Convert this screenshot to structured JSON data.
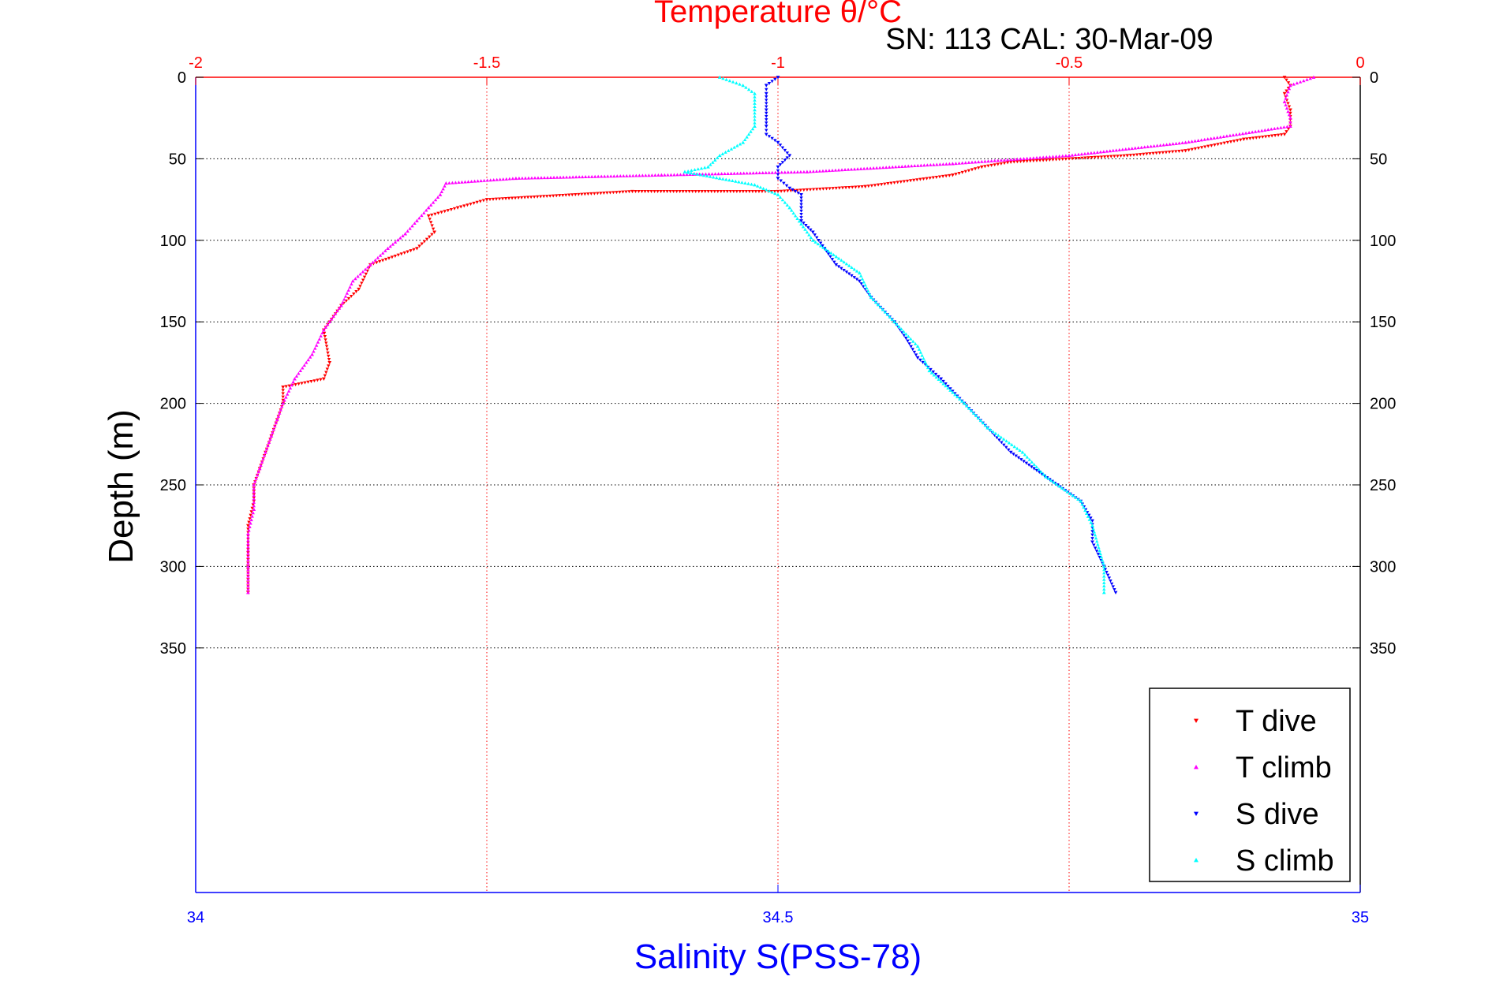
{
  "chart_data": {
    "type": "scatter",
    "title": "Temperature θ/°C",
    "subtitle": "SN: 113  CAL: 30-Mar-09",
    "xlabel": "Salinity S(PSS-78)",
    "ylabel": "Depth (m)",
    "temperature_axis": {
      "range": [
        -2,
        0
      ],
      "ticks": [
        -2,
        -1.5,
        -1,
        -0.5,
        0
      ],
      "tick_labels": [
        "-2",
        "-1.5",
        "-1",
        "-0.5",
        "0"
      ]
    },
    "salinity_axis": {
      "range": [
        34,
        35
      ],
      "ticks": [
        34,
        34.5,
        35
      ],
      "tick_labels": [
        "34",
        "34.5",
        "35"
      ]
    },
    "depth_axis": {
      "range": [
        0,
        500
      ],
      "reversed": true,
      "ticks": [
        0,
        50,
        100,
        150,
        200,
        250,
        300,
        350
      ],
      "tick_labels": [
        "0",
        "50",
        "100",
        "150",
        "200",
        "250",
        "300",
        "350"
      ]
    },
    "grid": true,
    "legend_position": "bottom-right",
    "series": [
      {
        "name": "T dive",
        "axis": "temperature",
        "color": "#ff0000",
        "marker": "triangle-down",
        "points": [
          [
            -0.13,
            0
          ],
          [
            -0.12,
            5
          ],
          [
            -0.13,
            10
          ],
          [
            -0.12,
            20
          ],
          [
            -0.12,
            30
          ],
          [
            -0.13,
            35
          ],
          [
            -0.2,
            38
          ],
          [
            -0.3,
            45
          ],
          [
            -0.4,
            48
          ],
          [
            -0.6,
            52
          ],
          [
            -0.65,
            55
          ],
          [
            -0.7,
            60
          ],
          [
            -0.85,
            67
          ],
          [
            -1.0,
            70
          ],
          [
            -1.25,
            70
          ],
          [
            -1.5,
            75
          ],
          [
            -1.55,
            80
          ],
          [
            -1.6,
            85
          ],
          [
            -1.59,
            95
          ],
          [
            -1.62,
            105
          ],
          [
            -1.7,
            115
          ],
          [
            -1.72,
            130
          ],
          [
            -1.75,
            140
          ],
          [
            -1.78,
            155
          ],
          [
            -1.77,
            175
          ],
          [
            -1.78,
            185
          ],
          [
            -1.85,
            190
          ],
          [
            -1.85,
            200
          ],
          [
            -1.86,
            210
          ],
          [
            -1.87,
            220
          ],
          [
            -1.88,
            230
          ],
          [
            -1.89,
            240
          ],
          [
            -1.9,
            250
          ],
          [
            -1.9,
            260
          ],
          [
            -1.91,
            275
          ],
          [
            -1.91,
            300
          ],
          [
            -1.91,
            316
          ]
        ]
      },
      {
        "name": "T climb",
        "axis": "temperature",
        "color": "#ff00ff",
        "marker": "triangle-up",
        "points": [
          [
            -0.08,
            0
          ],
          [
            -0.12,
            5
          ],
          [
            -0.13,
            15
          ],
          [
            -0.12,
            25
          ],
          [
            -0.12,
            30
          ],
          [
            -0.3,
            40
          ],
          [
            -0.5,
            48
          ],
          [
            -0.7,
            53
          ],
          [
            -0.95,
            58
          ],
          [
            -1.2,
            60
          ],
          [
            -1.45,
            62
          ],
          [
            -1.57,
            65
          ],
          [
            -1.58,
            72
          ],
          [
            -1.6,
            80
          ],
          [
            -1.62,
            88
          ],
          [
            -1.64,
            96
          ],
          [
            -1.67,
            105
          ],
          [
            -1.7,
            115
          ],
          [
            -1.73,
            125
          ],
          [
            -1.75,
            140
          ],
          [
            -1.78,
            155
          ],
          [
            -1.8,
            170
          ],
          [
            -1.83,
            185
          ],
          [
            -1.85,
            200
          ],
          [
            -1.86,
            210
          ],
          [
            -1.87,
            220
          ],
          [
            -1.88,
            230
          ],
          [
            -1.89,
            240
          ],
          [
            -1.9,
            250
          ],
          [
            -1.9,
            265
          ],
          [
            -1.91,
            280
          ],
          [
            -1.91,
            300
          ],
          [
            -1.91,
            316
          ]
        ]
      },
      {
        "name": "S dive",
        "axis": "salinity",
        "color": "#0000ff",
        "marker": "triangle-down",
        "points": [
          [
            34.5,
            0
          ],
          [
            34.49,
            5
          ],
          [
            34.49,
            10
          ],
          [
            34.49,
            20
          ],
          [
            34.49,
            30
          ],
          [
            34.49,
            35
          ],
          [
            34.5,
            40
          ],
          [
            34.51,
            48
          ],
          [
            34.5,
            55
          ],
          [
            34.5,
            62
          ],
          [
            34.51,
            68
          ],
          [
            34.52,
            72
          ],
          [
            34.52,
            80
          ],
          [
            34.52,
            88
          ],
          [
            34.53,
            95
          ],
          [
            34.54,
            105
          ],
          [
            34.55,
            115
          ],
          [
            34.57,
            125
          ],
          [
            34.58,
            135
          ],
          [
            34.6,
            150
          ],
          [
            34.61,
            160
          ],
          [
            34.62,
            172
          ],
          [
            34.64,
            185
          ],
          [
            34.66,
            200
          ],
          [
            34.68,
            215
          ],
          [
            34.7,
            230
          ],
          [
            34.72,
            240
          ],
          [
            34.74,
            250
          ],
          [
            34.76,
            260
          ],
          [
            34.77,
            272
          ],
          [
            34.77,
            285
          ],
          [
            34.78,
            300
          ],
          [
            34.79,
            316
          ]
        ]
      },
      {
        "name": "S climb",
        "axis": "salinity",
        "color": "#00ffff",
        "marker": "triangle-up",
        "points": [
          [
            34.45,
            0
          ],
          [
            34.47,
            5
          ],
          [
            34.48,
            10
          ],
          [
            34.48,
            20
          ],
          [
            34.48,
            30
          ],
          [
            34.47,
            40
          ],
          [
            34.45,
            48
          ],
          [
            34.44,
            55
          ],
          [
            34.42,
            58
          ],
          [
            34.45,
            62
          ],
          [
            34.48,
            66
          ],
          [
            34.5,
            72
          ],
          [
            34.51,
            80
          ],
          [
            34.52,
            90
          ],
          [
            34.53,
            100
          ],
          [
            34.55,
            110
          ],
          [
            34.57,
            120
          ],
          [
            34.58,
            135
          ],
          [
            34.6,
            150
          ],
          [
            34.62,
            165
          ],
          [
            34.63,
            180
          ],
          [
            34.66,
            200
          ],
          [
            34.68,
            215
          ],
          [
            34.71,
            230
          ],
          [
            34.73,
            245
          ],
          [
            34.76,
            260
          ],
          [
            34.77,
            275
          ],
          [
            34.78,
            300
          ],
          [
            34.78,
            316
          ]
        ]
      }
    ]
  }
}
